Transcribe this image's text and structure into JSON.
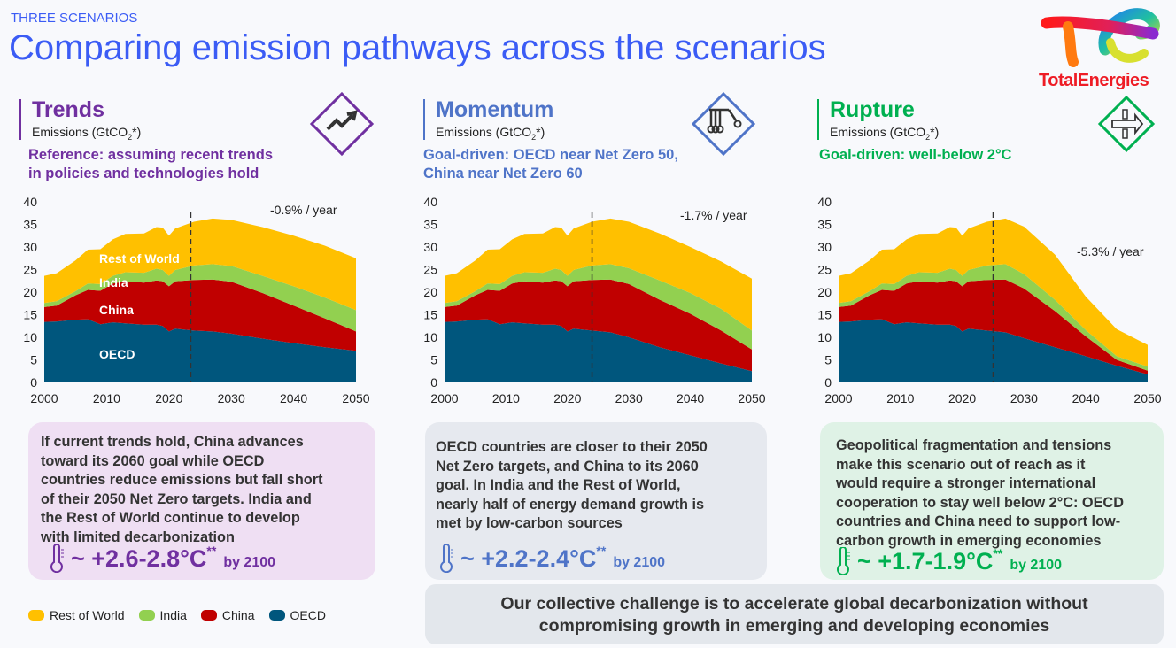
{
  "header": {
    "kicker": "THREE SCENARIOS",
    "title": "Comparing emission pathways across the scenarios",
    "logo_text": "TotalEnergies"
  },
  "colors": {
    "title": "#3b5cf5",
    "trends": "#7030a0",
    "momentum": "#4f74c8",
    "rupture": "#00b050",
    "rest_of_world": "#ffc000",
    "india": "#92d050",
    "china": "#c00000",
    "oecd": "#00567d"
  },
  "scenarios": [
    {
      "name": "Trends",
      "unit": "Emissions (GtCO",
      "unit_sub": "2",
      "unit_end": "*)",
      "icon": "trending-up-icon",
      "subtitle": [
        "Reference: assuming recent trends",
        "in policies and technologies hold"
      ],
      "summary": [
        "If current trends hold, China advances",
        "toward its 2060 goal while OECD",
        "countries reduce emissions but fall short",
        "of their 2050 Net Zero targets. India and",
        "the Rest of World continue to develop",
        "with limited decarbonization"
      ],
      "temperature": "~ +2.6-2.8°C",
      "temp_note": "**",
      "temp_by": "by 2100"
    },
    {
      "name": "Momentum",
      "unit": "Emissions (GtCO",
      "unit_sub": "2",
      "unit_end": "*)",
      "icon": "newtons-cradle-icon",
      "subtitle": [
        "Goal-driven: OECD near Net Zero 50,",
        "China near Net Zero 60"
      ],
      "summary": [
        "OECD countries are closer to their 2050",
        "Net Zero targets, and China to its 2060",
        "goal. In India and the Rest of World,",
        "nearly half of energy demand growth is",
        "met by low-carbon sources"
      ],
      "temperature": "~ +2.2-2.4°C",
      "temp_note": "**",
      "temp_by": "by 2100"
    },
    {
      "name": "Rupture",
      "unit": "Emissions (GtCO",
      "unit_sub": "2",
      "unit_end": "*)",
      "icon": "breakthrough-arrow-icon",
      "subtitle": [
        "Goal-driven: well-below 2°C"
      ],
      "summary": [
        "Geopolitical fragmentation and tensions",
        "make this scenario out of reach as it",
        "would require a stronger international",
        "cooperation to stay well below 2°C: OECD",
        "countries and China need to support low-",
        "carbon growth in emerging economies"
      ],
      "temperature": "~ +1.7-1.9°C",
      "temp_note": "**",
      "temp_by": "by 2100"
    }
  ],
  "legend": [
    "Rest of World",
    "India",
    "China",
    "OECD"
  ],
  "challenge": [
    "Our collective challenge is to accelerate global decarbonization without",
    "compromising growth in emerging and developing economies"
  ],
  "chart_data": [
    {
      "type": "area",
      "stacked": true,
      "title": "Trends",
      "ylabel": "Emissions (GtCO2*)",
      "ylim": [
        0,
        40
      ],
      "xlim": [
        2000,
        2050
      ],
      "yticks": [
        "0",
        "5",
        "10",
        "15",
        "20",
        "25",
        "30",
        "35",
        "40"
      ],
      "xticks": [
        "2000",
        "2010",
        "2020",
        "2030",
        "2040",
        "2050"
      ],
      "annotation": "-0.9% / year",
      "projection_start": 2023.5,
      "series_labels": [
        "Rest of World",
        "India",
        "China",
        "OECD"
      ],
      "x": [
        2000,
        2002,
        2005,
        2007,
        2009,
        2011,
        2013,
        2016,
        2018,
        2019,
        2020,
        2021,
        2024,
        2027,
        2030,
        2035,
        2040,
        2045,
        2050
      ],
      "series": [
        {
          "name": "OECD",
          "values": [
            13.4,
            13.5,
            13.9,
            14.0,
            12.9,
            13.3,
            13.1,
            12.8,
            12.8,
            12.5,
            11.3,
            11.9,
            11.5,
            11.3,
            10.8,
            9.7,
            8.7,
            7.8,
            7.0
          ]
        },
        {
          "name": "China",
          "values": [
            3.3,
            3.5,
            5.4,
            6.5,
            7.4,
            8.6,
            9.3,
            9.3,
            9.8,
            9.9,
            10.0,
            10.5,
            11.2,
            11.5,
            11.5,
            10.1,
            8.3,
            6.4,
            4.3
          ]
        },
        {
          "name": "India",
          "values": [
            0.9,
            1.0,
            0.9,
            1.4,
            1.5,
            1.7,
            2.0,
            2.2,
            2.6,
            2.5,
            2.3,
            2.5,
            3.2,
            3.4,
            3.5,
            3.8,
            4.3,
            4.6,
            4.7
          ]
        },
        {
          "name": "Rest of World",
          "values": [
            6.0,
            6.2,
            6.8,
            7.5,
            7.7,
            8.1,
            8.5,
            8.7,
            9.2,
            9.4,
            8.9,
            9.2,
            9.7,
            10.1,
            10.2,
            10.8,
            11.2,
            11.5,
            11.5
          ]
        }
      ]
    },
    {
      "type": "area",
      "stacked": true,
      "title": "Momentum",
      "ylabel": "Emissions (GtCO2*)",
      "ylim": [
        0,
        40
      ],
      "xlim": [
        2000,
        2050
      ],
      "yticks": [
        "0",
        "5",
        "10",
        "15",
        "20",
        "25",
        "30",
        "35",
        "40"
      ],
      "xticks": [
        "2000",
        "2010",
        "2020",
        "2030",
        "2040",
        "2050"
      ],
      "annotation": "-1.7% / year",
      "projection_start": 2024,
      "x": [
        2000,
        2002,
        2005,
        2007,
        2009,
        2011,
        2013,
        2016,
        2018,
        2019,
        2020,
        2021,
        2024,
        2027,
        2030,
        2035,
        2040,
        2045,
        2050
      ],
      "series": [
        {
          "name": "OECD",
          "values": [
            13.4,
            13.5,
            13.9,
            14.0,
            12.9,
            13.3,
            13.1,
            12.8,
            12.8,
            12.5,
            11.3,
            11.9,
            11.5,
            11.1,
            10.0,
            7.8,
            6.0,
            4.2,
            2.5
          ]
        },
        {
          "name": "China",
          "values": [
            3.3,
            3.5,
            5.4,
            6.5,
            7.4,
            8.6,
            9.3,
            9.3,
            9.8,
            9.9,
            10.0,
            10.5,
            11.2,
            11.7,
            11.8,
            10.5,
            9.2,
            7.3,
            4.8
          ]
        },
        {
          "name": "India",
          "values": [
            0.9,
            1.0,
            0.9,
            1.4,
            1.5,
            1.7,
            2.0,
            2.2,
            2.6,
            2.5,
            2.3,
            2.5,
            3.2,
            3.4,
            3.5,
            4.3,
            4.6,
            4.8,
            4.2
          ]
        },
        {
          "name": "Rest of World",
          "values": [
            6.0,
            6.2,
            6.8,
            7.5,
            7.7,
            8.1,
            8.5,
            8.7,
            9.2,
            9.4,
            8.9,
            9.2,
            9.7,
            10.1,
            10.3,
            10.4,
            10.2,
            10.5,
            11.5
          ]
        }
      ]
    },
    {
      "type": "area",
      "stacked": true,
      "title": "Rupture",
      "ylabel": "Emissions (GtCO2*)",
      "ylim": [
        0,
        40
      ],
      "xlim": [
        2000,
        2050
      ],
      "yticks": [
        "0",
        "5",
        "10",
        "15",
        "20",
        "25",
        "30",
        "35",
        "40"
      ],
      "xticks": [
        "2000",
        "2010",
        "2020",
        "2030",
        "2040",
        "2050"
      ],
      "annotation": "-5.3% / year",
      "projection_start": 2025,
      "x": [
        2000,
        2002,
        2005,
        2007,
        2009,
        2011,
        2013,
        2016,
        2018,
        2019,
        2020,
        2021,
        2024,
        2027,
        2030,
        2035,
        2040,
        2045,
        2050
      ],
      "series": [
        {
          "name": "OECD",
          "values": [
            13.4,
            13.5,
            13.9,
            14.0,
            12.9,
            13.3,
            13.1,
            12.8,
            12.8,
            12.5,
            11.3,
            11.9,
            11.5,
            11.1,
            9.8,
            7.8,
            5.8,
            3.7,
            1.8
          ]
        },
        {
          "name": "China",
          "values": [
            3.3,
            3.5,
            5.4,
            6.5,
            7.4,
            8.6,
            9.3,
            9.3,
            9.8,
            9.9,
            10.0,
            10.5,
            11.2,
            11.7,
            11.0,
            8.0,
            4.4,
            1.3,
            0.8
          ]
        },
        {
          "name": "India",
          "values": [
            0.9,
            1.0,
            0.9,
            1.4,
            1.5,
            1.7,
            2.0,
            2.2,
            2.6,
            2.5,
            2.3,
            2.5,
            3.2,
            3.4,
            3.2,
            2.5,
            1.4,
            0.8,
            0.9
          ]
        },
        {
          "name": "Rest of World",
          "values": [
            6.0,
            6.2,
            6.8,
            7.5,
            7.7,
            8.1,
            8.5,
            8.7,
            9.2,
            9.4,
            8.9,
            9.2,
            9.7,
            10.1,
            10.5,
            10.0,
            7.4,
            6.0,
            4.8
          ]
        }
      ]
    }
  ]
}
